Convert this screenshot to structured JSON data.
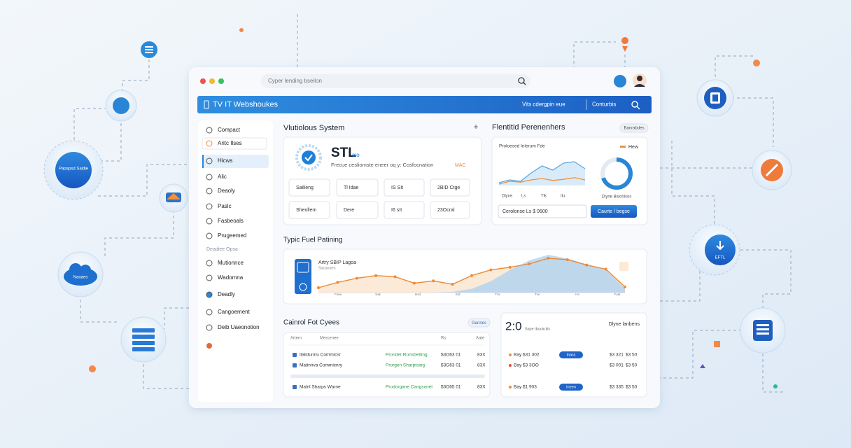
{
  "search": "Cyper lending bseilon",
  "header": {
    "title": "TV IT Webshoukes",
    "link": "Vits cdergpin eue",
    "menu": "Conturbis"
  },
  "sidebar": {
    "items": [
      "Compact",
      "Aritc Ilses",
      "Hicws",
      "Alic",
      "Deaoly",
      "Paslc",
      "Fasbeoals",
      "Prugeemed",
      "Deadiee Opsa",
      "Mutionnce",
      "Wadomna",
      "Deadly",
      "Cangoement",
      "Deib Uaeonotion"
    ]
  },
  "system": {
    "title": "Vlutiolous System",
    "name": "STL",
    "badge": "eio",
    "subtitle": "Frecue cesliomste eneer oq y: Cosfocnation",
    "tag": "MAC",
    "chips": [
      "Sailieng",
      "Tl Idae",
      "IS SIt",
      "2BID Ctge",
      "Sheollem",
      "Dere",
      "I6 sIt",
      "23Ocral"
    ]
  },
  "params": {
    "title": "Flentitid Perenenhers",
    "button": "Banrabdes",
    "chart_title": "Proloesed Inlerum Fde",
    "legend": "Hew",
    "chart_labels": [
      "Dlyne",
      "Ls",
      "Tlk",
      "Ilu"
    ],
    "ylim": [
      0,
      100
    ],
    "series": [
      {
        "color": "#5aa7e0",
        "values": [
          10,
          20,
          15,
          45,
          70,
          55,
          80,
          85,
          60
        ]
      },
      {
        "color": "#f0913a",
        "values": [
          5,
          15,
          12,
          20,
          25,
          18,
          22,
          28,
          20
        ]
      }
    ],
    "donut_value": 70,
    "donut_label": "Dlyne Bwonlsos",
    "input": "Cerolonse Ls $ 0600",
    "submit": "Caurte / begse"
  },
  "fuel": {
    "title": "Typic Fuel Patining",
    "legend": "Artry SBIP Lagoa",
    "sublegend": "Sacaoaes",
    "ylim": [
      0,
      100
    ],
    "axis_labels": [
      "Fnee",
      "Sak",
      "Hsd",
      "Snf",
      "Tns",
      "Tue",
      "Hs",
      "Fuat"
    ],
    "series": [
      {
        "color": "#ee8a35",
        "values": [
          13,
          27,
          38,
          45,
          42,
          25,
          31,
          22,
          45,
          60,
          67,
          76,
          91,
          87,
          73,
          62,
          15
        ]
      },
      {
        "color": "#8cc0ec",
        "values": [
          0,
          0,
          0,
          0,
          0,
          0,
          0,
          2,
          10,
          30,
          60,
          85,
          100,
          90,
          75,
          60,
          10
        ]
      }
    ]
  },
  "control": {
    "title": "Cainrol Fot Cyees",
    "button": "Gannes",
    "header": [
      "Artern",
      "Mercenee",
      "Rs",
      "Aate"
    ],
    "rows": [
      [
        "Ilalidunnu Commicsr",
        "Pronder Ronsbetting",
        "$3O63 01",
        "83X"
      ],
      [
        "Matinnva Commicnry",
        "Prorgen Sharptsing",
        "$3G63 01",
        "83X"
      ],
      [
        "Malnl Sharps Warne",
        "Prodorgane Cangsonel",
        "$3O65 01",
        "83X"
      ]
    ]
  },
  "summary": {
    "value": "2:0",
    "caption": "Sxpe Ibuuirulis",
    "title": "Dlyne lanbens",
    "rows": [
      {
        "name": "Bay $31 302",
        "tag": "Inara",
        "a": "$3 321",
        "b": "$3 50"
      },
      {
        "name": "Bay $3 3OO",
        "a": "$3 001",
        "b": "$3 50"
      },
      {
        "name": "Bay $1 903",
        "tag": "Ineen",
        "a": "$3 335",
        "b": "$3 50"
      }
    ]
  },
  "decor": {
    "circle_a": "Paoapsd Saldie",
    "cloud": "Naoaes",
    "download": "EFTL"
  }
}
